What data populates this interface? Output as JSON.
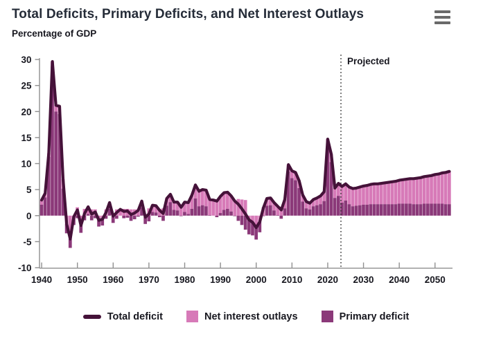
{
  "header": {
    "title": "Total Deficits, Primary Deficits, and Net Interest Outlays",
    "subtitle": "Percentage of GDP"
  },
  "menu_icon": "hamburger-menu-icon",
  "annotations": {
    "projected_label": "Projected"
  },
  "legend": [
    {
      "label": "Total deficit",
      "swatch": "line",
      "color": "#451239"
    },
    {
      "label": "Net interest outlays",
      "swatch": "square",
      "color": "#d77ab8"
    },
    {
      "label": "Primary deficit",
      "swatch": "square",
      "color": "#8b3979"
    }
  ],
  "colors": {
    "total_deficit_line": "#451239",
    "net_interest_fill": "#d77ab8",
    "primary_deficit_fill": "#8b3979",
    "axis": "#8f8f8f",
    "tick_label": "#17171f",
    "projected_line": "#222222",
    "title_text": "#252c38"
  },
  "chart_data": {
    "type": "bar",
    "subtype": "stacked-bars-with-line-overlay",
    "title": "Total Deficits, Primary Deficits, and Net Interest Outlays",
    "xlabel": "",
    "ylabel": "Percentage of GDP",
    "ylim": [
      -10,
      30
    ],
    "y_ticks": [
      30,
      25,
      20,
      15,
      10,
      5,
      0,
      -5,
      -10
    ],
    "x_ticks": [
      1940,
      1950,
      1960,
      1970,
      1980,
      1990,
      2000,
      2010,
      2020,
      2030,
      2040,
      2050
    ],
    "x_start_year": 1940,
    "x_end_year": 2054,
    "projection_start_year": 2024,
    "grid": false,
    "legend_position": "bottom",
    "primary_deficit_definition": "total_deficit minus net_interest (computed per year)",
    "series": [
      {
        "name": "Total deficit",
        "type": "line",
        "color": "#451239",
        "values": [
          3.0,
          4.3,
          12.0,
          29.6,
          21.2,
          21.0,
          7.0,
          -1.6,
          -4.5,
          -0.2,
          1.1,
          -1.9,
          0.4,
          1.7,
          0.3,
          0.7,
          -0.9,
          -0.7,
          0.6,
          2.5,
          -0.1,
          0.6,
          1.2,
          0.8,
          0.9,
          0.2,
          0.5,
          1.0,
          2.8,
          -0.3,
          0.3,
          2.0,
          1.9,
          1.0,
          0.4,
          3.3,
          4.1,
          2.6,
          2.6,
          1.6,
          2.6,
          2.5,
          3.9,
          5.9,
          4.7,
          5.0,
          4.9,
          3.1,
          3.0,
          2.8,
          3.7,
          4.4,
          4.5,
          3.8,
          2.8,
          2.2,
          1.3,
          0.3,
          -0.8,
          -1.3,
          -2.3,
          -1.2,
          1.5,
          3.3,
          3.4,
          2.5,
          1.8,
          1.1,
          3.1,
          9.8,
          8.6,
          8.3,
          6.7,
          4.0,
          2.7,
          2.4,
          3.1,
          3.4,
          3.8,
          4.6,
          14.7,
          11.8,
          5.3,
          6.2,
          5.6,
          6.1,
          5.5,
          5.2,
          5.3,
          5.5,
          5.7,
          5.8,
          6.0,
          6.1,
          6.1,
          6.2,
          6.3,
          6.4,
          6.5,
          6.6,
          6.8,
          6.9,
          7.0,
          7.1,
          7.1,
          7.2,
          7.3,
          7.5,
          7.6,
          7.7,
          7.9,
          8.0,
          8.2,
          8.3,
          8.5
        ]
      },
      {
        "name": "Net interest outlays",
        "type": "bar",
        "color": "#d77ab8",
        "values": [
          0.9,
          0.8,
          0.7,
          0.9,
          1.2,
          1.5,
          1.8,
          1.8,
          1.7,
          1.6,
          1.6,
          1.4,
          1.3,
          1.4,
          1.2,
          1.2,
          1.2,
          1.2,
          1.2,
          1.2,
          1.3,
          1.2,
          1.2,
          1.3,
          1.3,
          1.2,
          1.2,
          1.2,
          1.2,
          1.3,
          1.4,
          1.3,
          1.3,
          1.3,
          1.4,
          1.4,
          1.5,
          1.5,
          1.6,
          1.7,
          1.9,
          2.2,
          2.6,
          2.6,
          2.9,
          3.0,
          3.1,
          3.0,
          3.0,
          3.1,
          3.2,
          3.3,
          3.2,
          3.0,
          2.9,
          3.2,
          3.1,
          3.0,
          2.8,
          2.5,
          2.3,
          2.0,
          1.6,
          1.4,
          1.4,
          1.5,
          1.7,
          1.7,
          1.7,
          1.3,
          1.4,
          1.5,
          1.4,
          1.3,
          1.3,
          1.2,
          1.3,
          1.4,
          1.6,
          1.8,
          1.6,
          1.5,
          1.9,
          2.4,
          3.1,
          3.2,
          3.3,
          3.4,
          3.4,
          3.5,
          3.6,
          3.7,
          3.8,
          3.9,
          3.9,
          4.0,
          4.1,
          4.2,
          4.3,
          4.4,
          4.5,
          4.6,
          4.7,
          4.8,
          4.9,
          5.0,
          5.1,
          5.2,
          5.3,
          5.4,
          5.6,
          5.7,
          5.9,
          6.1,
          6.3
        ]
      },
      {
        "name": "Primary deficit",
        "type": "bar",
        "color": "#8b3979",
        "derived": "total minus net interest"
      }
    ]
  }
}
